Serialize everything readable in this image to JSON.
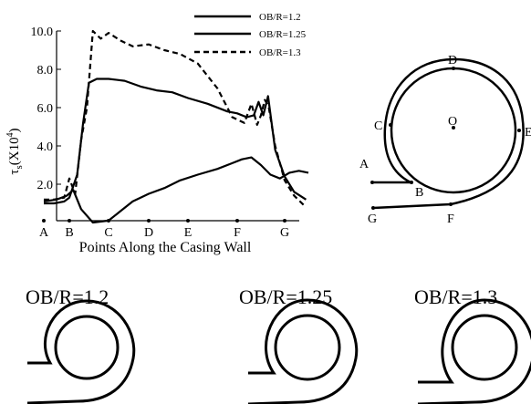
{
  "chart_data": {
    "type": "line",
    "ylabel_base": "τ",
    "ylabel_sub": "s",
    "ylabel_unit": "(X10",
    "ylabel_exp": "4",
    "ylabel_close": ")",
    "xlabel": "Points Along the Casing Wall",
    "ylim": [
      0,
      10
    ],
    "yticks": [
      "2.0",
      "4.0",
      "6.0",
      "8.0",
      "10.0"
    ],
    "ytick_values": [
      2,
      4,
      6,
      8,
      10
    ],
    "xticks": [
      "A",
      "B",
      "C",
      "D",
      "E",
      "F",
      "G"
    ],
    "xtick_positions": [
      0,
      1,
      2,
      3,
      4,
      5,
      6
    ],
    "legend_position": "top-right",
    "series": [
      {
        "name": "OB/R=1.2",
        "style": "solid",
        "x": [
          0,
          0.5,
          0.9,
          1.1,
          1.3,
          1.6,
          2.0,
          2.3,
          2.6,
          3.0,
          3.4,
          3.8,
          4.2,
          4.6,
          4.9,
          5.1,
          5.3,
          5.5,
          5.7,
          5.9,
          6.1,
          6.3,
          6.5
        ],
        "y": [
          1.1,
          1.2,
          1.4,
          1.7,
          0.7,
          0.0,
          0.1,
          0.6,
          1.1,
          1.5,
          1.8,
          2.2,
          2.5,
          2.8,
          3.1,
          3.3,
          3.4,
          3.0,
          2.5,
          2.3,
          2.6,
          2.7,
          2.6
        ]
      },
      {
        "name": "OB/R=1.25",
        "style": "solid",
        "x": [
          0,
          0.4,
          0.8,
          1.0,
          1.2,
          1.35,
          1.5,
          1.7,
          2.0,
          2.4,
          2.8,
          3.2,
          3.6,
          4.0,
          4.4,
          4.8,
          5.0,
          5.2,
          5.35,
          5.45,
          5.55,
          5.65,
          5.8,
          6.0,
          6.2,
          6.45
        ],
        "y": [
          1.0,
          1.0,
          1.1,
          1.3,
          2.5,
          5.2,
          7.3,
          7.5,
          7.5,
          7.4,
          7.1,
          6.9,
          6.8,
          6.5,
          6.2,
          5.8,
          5.7,
          5.5,
          5.6,
          6.3,
          5.6,
          6.6,
          3.8,
          2.4,
          1.6,
          1.2
        ]
      },
      {
        "name": "OB/R=1.3",
        "style": "dashed",
        "x": [
          0,
          0.4,
          0.8,
          1.0,
          1.15,
          1.3,
          1.45,
          1.6,
          1.8,
          2.0,
          2.3,
          2.6,
          3.0,
          3.4,
          3.8,
          4.2,
          4.6,
          4.9,
          5.15,
          5.3,
          5.42,
          5.5,
          5.58,
          5.66,
          5.8,
          6.0,
          6.2,
          6.45
        ],
        "y": [
          1.2,
          1.2,
          1.3,
          2.3,
          1.5,
          4.3,
          6.0,
          10.0,
          9.6,
          9.9,
          9.5,
          9.2,
          9.3,
          9.0,
          8.8,
          8.3,
          7.0,
          5.5,
          5.2,
          6.2,
          5.1,
          5.6,
          6.4,
          6.1,
          4.0,
          2.2,
          1.4,
          0.8
        ]
      }
    ]
  },
  "schematic": {
    "labels": [
      "A",
      "B",
      "C",
      "D",
      "E",
      "F",
      "G",
      "O"
    ]
  },
  "captions": [
    "OB/R=1.2",
    "OB/R=1.25",
    "OB/R=1.3"
  ]
}
